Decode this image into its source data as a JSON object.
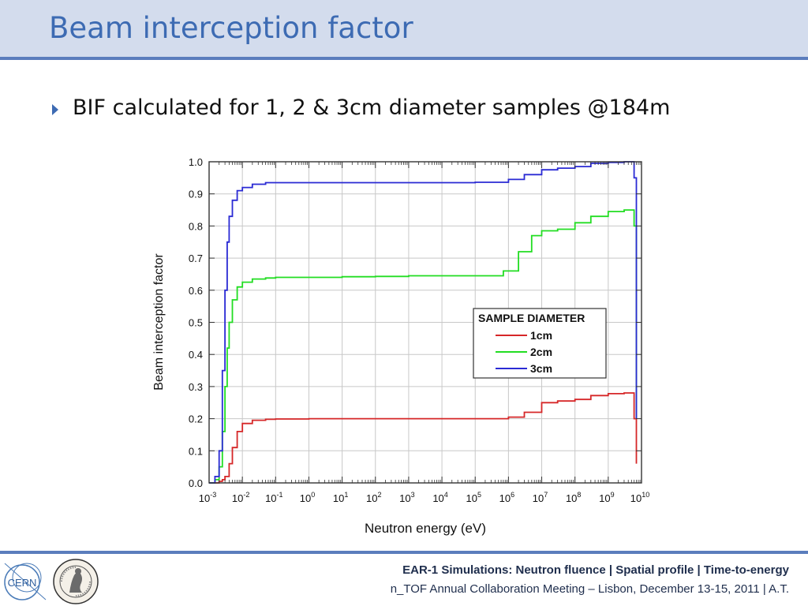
{
  "slide": {
    "title": "Beam interception factor",
    "bullet": "BIF calculated for 1, 2 & 3cm diameter samples @184m"
  },
  "footer": {
    "line1": "EAR-1 Simulations: Neutron fluence | Spatial profile | Time-to-energy",
    "line2": "n_TOF Annual Collaboration Meeting – Lisbon, December 13-15, 2011 | A.T.",
    "logo_left": "CERN",
    "logo_left_icon": "cern-logo-icon",
    "logo_right_icon": "university-seal-icon"
  },
  "colors": {
    "header_bg": "#d3dced",
    "accent": "#5b7dbd",
    "title": "#3d6bb3",
    "series_1cm": "#d62728",
    "series_2cm": "#22dd22",
    "series_3cm": "#2a2ad4"
  },
  "chart_data": {
    "type": "line",
    "xlabel": "Neutron energy (eV)",
    "ylabel": "Beam interception factor",
    "xscale": "log",
    "xlim": [
      0.001,
      10000000000
    ],
    "ylim": [
      0.0,
      1.0
    ],
    "x_ticks": [
      "-3",
      "-2",
      "-1",
      "0",
      "1",
      "2",
      "3",
      "4",
      "5",
      "6",
      "7",
      "8",
      "9",
      "10"
    ],
    "y_ticks": [
      "0.0",
      "0.1",
      "0.2",
      "0.3",
      "0.4",
      "0.5",
      "0.6",
      "0.7",
      "0.8",
      "0.9",
      "1.0"
    ],
    "grid": true,
    "legend_title": "SAMPLE DIAMETER",
    "legend_position": "right",
    "series": [
      {
        "name": "1cm",
        "x": [
          0.001,
          0.0015,
          0.002,
          0.0025,
          0.003,
          0.004,
          0.005,
          0.007,
          0.01,
          0.02,
          0.05,
          0.1,
          1,
          10,
          100,
          1000,
          10000,
          100000,
          1000000,
          3000000,
          10000000,
          30000000,
          100000000,
          300000000,
          1000000000,
          3000000000,
          5000000000,
          6000000000,
          7000000000
        ],
        "values": [
          0.0,
          0.0,
          0.005,
          0.01,
          0.02,
          0.06,
          0.11,
          0.16,
          0.185,
          0.195,
          0.198,
          0.199,
          0.2,
          0.2,
          0.2,
          0.2,
          0.2,
          0.2,
          0.205,
          0.22,
          0.25,
          0.255,
          0.26,
          0.272,
          0.278,
          0.28,
          0.28,
          0.2,
          0.06
        ]
      },
      {
        "name": "2cm",
        "x": [
          0.001,
          0.0015,
          0.002,
          0.0025,
          0.003,
          0.0035,
          0.004,
          0.005,
          0.007,
          0.01,
          0.02,
          0.05,
          0.1,
          1,
          10,
          100,
          1000,
          10000,
          100000,
          700000,
          2000000,
          5000000,
          10000000,
          30000000,
          100000000,
          300000000,
          1000000000,
          3000000000,
          5000000000,
          6000000000,
          7000000000
        ],
        "values": [
          0.0,
          0.01,
          0.05,
          0.16,
          0.3,
          0.42,
          0.5,
          0.57,
          0.61,
          0.625,
          0.635,
          0.638,
          0.64,
          0.64,
          0.642,
          0.643,
          0.645,
          0.645,
          0.645,
          0.66,
          0.72,
          0.77,
          0.785,
          0.79,
          0.81,
          0.83,
          0.845,
          0.85,
          0.85,
          0.8,
          0.2
        ]
      },
      {
        "name": "3cm",
        "x": [
          0.001,
          0.0015,
          0.002,
          0.0025,
          0.003,
          0.0035,
          0.004,
          0.005,
          0.007,
          0.01,
          0.02,
          0.05,
          0.1,
          1,
          10,
          100,
          1000,
          10000,
          100000,
          1000000,
          3000000,
          10000000,
          30000000,
          100000000,
          300000000,
          1000000000,
          3000000000,
          5000000000,
          6000000000,
          7000000000
        ],
        "values": [
          0.0,
          0.02,
          0.1,
          0.35,
          0.6,
          0.75,
          0.83,
          0.88,
          0.91,
          0.92,
          0.93,
          0.935,
          0.935,
          0.935,
          0.935,
          0.935,
          0.935,
          0.935,
          0.936,
          0.945,
          0.96,
          0.975,
          0.98,
          0.985,
          0.995,
          0.998,
          1.0,
          1.0,
          0.95,
          0.2
        ]
      }
    ]
  }
}
